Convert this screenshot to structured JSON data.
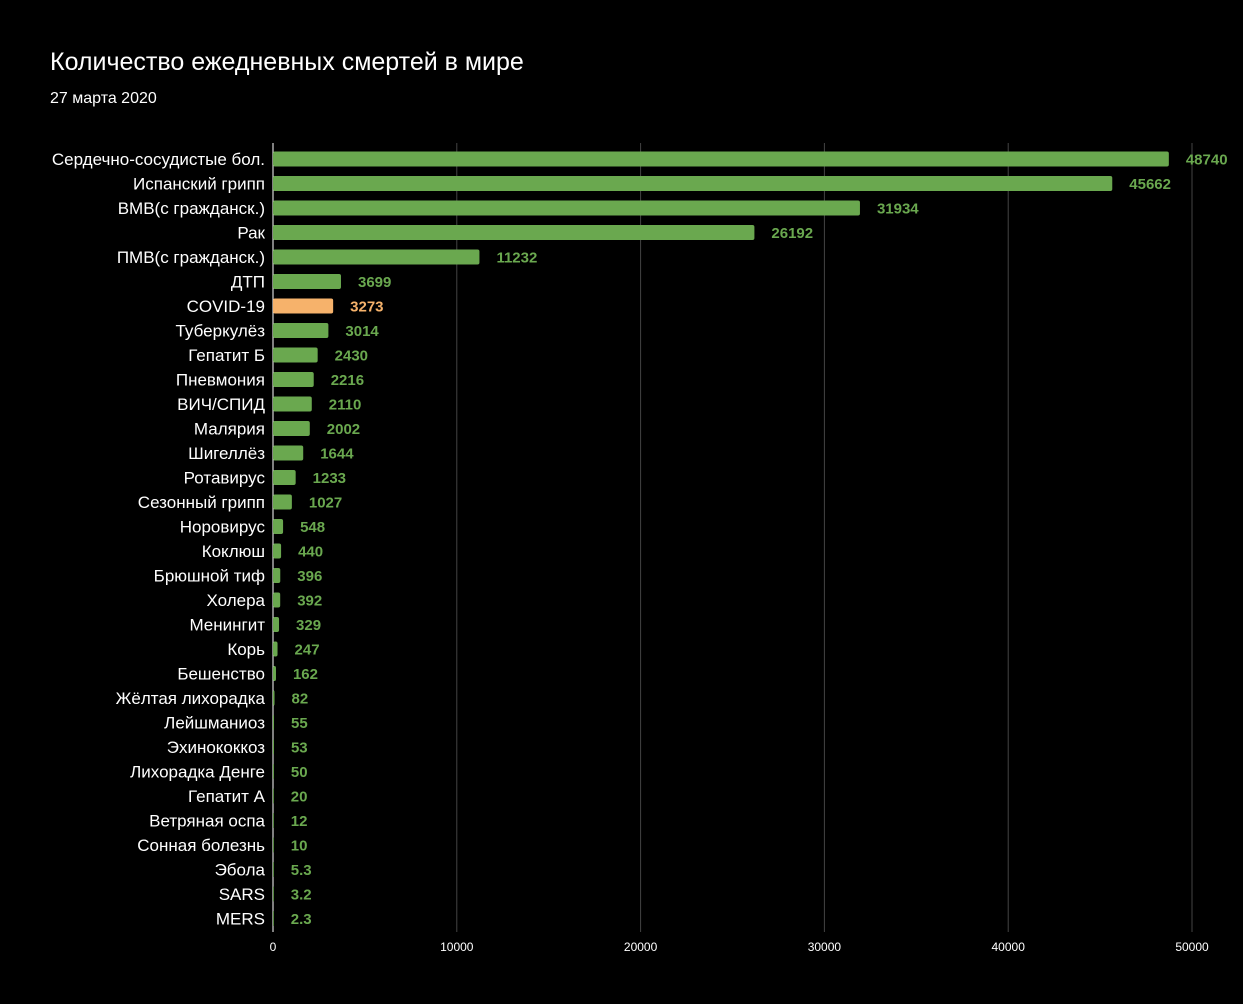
{
  "title": "Количество ежедневных смертей в мире",
  "subtitle": "27 марта 2020",
  "colors": {
    "bar": "#6aa84f",
    "highlight": "#f6b26b",
    "grid": "#444444",
    "axis": "#ffffff",
    "background": "#000000"
  },
  "chart_data": {
    "type": "bar",
    "orientation": "horizontal",
    "title": "Количество ежедневных смертей в мире",
    "subtitle": "27 марта 2020",
    "xlim": [
      0,
      50000
    ],
    "xticks": [
      0,
      10000,
      20000,
      30000,
      40000,
      50000
    ],
    "grid": "vertical",
    "highlighted_category": "COVID-19",
    "categories": [
      "Сердечно-сосудистые бол.",
      "Испанский грипп",
      "ВМВ(с гражданск.)",
      "Рак",
      "ПМВ(с гражданск.)",
      "ДТП",
      "COVID-19",
      "Туберкулёз",
      "Гепатит Б",
      "Пневмония",
      "ВИЧ/СПИД",
      "Малярия",
      "Шигеллёз",
      "Ротавирус",
      "Сезонный грипп",
      "Норовирус",
      "Коклюш",
      "Брюшной тиф",
      "Холера",
      "Менингит",
      "Корь",
      "Бешенство",
      "Жёлтая лихорадка",
      "Лейшманиоз",
      "Эхинококкоз",
      "Лихорадка Денге",
      "Гепатит А",
      "Ветряная оспа",
      "Сонная болезнь",
      "Эбола",
      "SARS",
      "MERS"
    ],
    "values": [
      48740,
      45662,
      31934,
      26192,
      11232,
      3699,
      3273,
      3014,
      2430,
      2216,
      2110,
      2002,
      1644,
      1233,
      1027,
      548,
      440,
      396,
      392,
      329,
      247,
      162,
      82,
      55,
      53,
      50,
      20,
      12,
      10,
      5.3,
      3.2,
      2.3
    ]
  }
}
